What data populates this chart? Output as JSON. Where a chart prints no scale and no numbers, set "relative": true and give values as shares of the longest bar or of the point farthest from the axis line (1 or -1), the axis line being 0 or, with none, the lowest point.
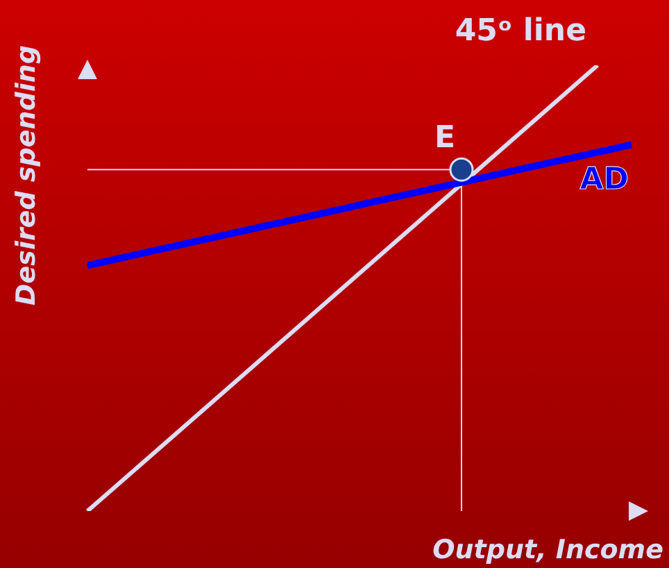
{
  "chart_data": {
    "type": "line",
    "relative": true,
    "xlabel": "Output, Income",
    "ylabel": "Desired spending",
    "categories": [
      null,
      null,
      null,
      null,
      null,
      null,
      null,
      null,
      null,
      null,
      null,
      null,
      null,
      null,
      null,
      null,
      null
    ],
    "grid": false,
    "legend": false,
    "series": [
      {
        "name": "45ᵒ line",
        "color": "#dcdcf5",
        "marker": "none",
        "values": [
          0,
          null,
          null,
          null,
          null,
          null,
          null,
          null,
          null,
          null,
          null,
          null,
          null,
          null,
          null,
          1.0,
          null
        ]
      },
      {
        "name": "AD",
        "color": "#0000ff",
        "marker": "none",
        "values": [
          0.551,
          null,
          null,
          null,
          null,
          null,
          null,
          null,
          null,
          null,
          null,
          null,
          null,
          null,
          null,
          null,
          0.822
        ]
      },
      {
        "name": "E",
        "color": "#1a3f8c",
        "marker": "circle",
        "values": [
          null,
          null,
          null,
          null,
          null,
          null,
          null,
          null,
          null,
          null,
          null,
          0.766,
          null,
          null,
          null,
          null,
          null
        ]
      }
    ],
    "ref_lines": [
      {
        "axis": "y",
        "value": 0.766,
        "color": "#dcdcf5"
      }
    ]
  }
}
